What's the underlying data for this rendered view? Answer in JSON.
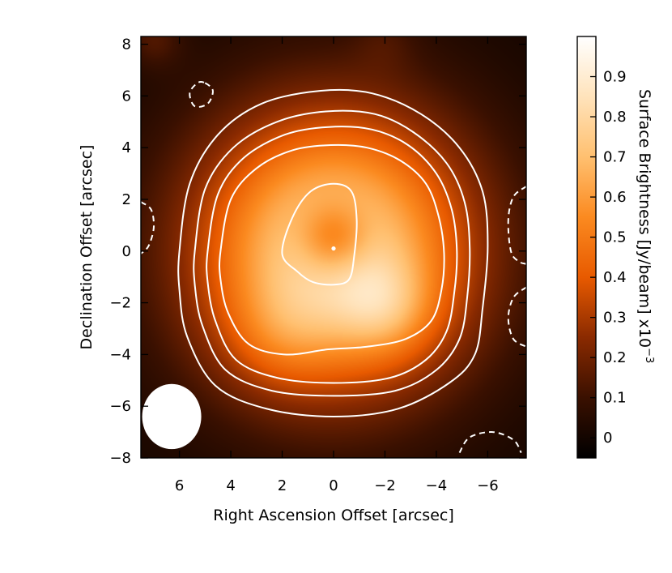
{
  "chart_data": {
    "type": "heatmap",
    "title": "",
    "xlabel": "Right Ascension Offset [arcsec]",
    "ylabel": "Declination Offset [arcsec]",
    "colorbar_label": "Surface Brightness [Jy/beam] x10",
    "colorbar_exponent": "−3",
    "xlim": [
      7.5,
      -7.5
    ],
    "ylim": [
      -8,
      8.3
    ],
    "x_ticks": [
      6,
      4,
      2,
      0,
      -2,
      -4,
      -6
    ],
    "x_tick_labels": [
      "6",
      "4",
      "2",
      "0",
      "−2",
      "−4",
      "−6"
    ],
    "y_ticks": [
      8,
      6,
      4,
      2,
      0,
      -2,
      -4,
      -6,
      -8
    ],
    "y_tick_labels": [
      "8",
      "6",
      "4",
      "2",
      "0",
      "−2",
      "−4",
      "−6",
      "−8"
    ],
    "colorbar_range": [
      -0.05,
      1.0
    ],
    "colorbar_ticks": [
      0,
      0.1,
      0.2,
      0.3,
      0.4,
      0.5,
      0.6,
      0.7,
      0.8,
      0.9
    ],
    "colorbar_tick_labels": [
      "0",
      "0.1",
      "0.2",
      "0.3",
      "0.4",
      "0.5",
      "0.6",
      "0.7",
      "0.8",
      "0.9"
    ],
    "colormap": [
      "#000000",
      "#3a1000",
      "#8a2a00",
      "#e85a00",
      "#fb8a20",
      "#ffc070",
      "#ffe3bb",
      "#ffffff"
    ],
    "contours_solid": [
      [
        [
          6.0,
          0.0
        ],
        [
          5.6,
          2.6
        ],
        [
          4.5,
          4.5
        ],
        [
          2.8,
          5.7
        ],
        [
          0.5,
          6.2
        ],
        [
          -1.5,
          6.1
        ],
        [
          -3.4,
          5.3
        ],
        [
          -4.9,
          4.0
        ],
        [
          -5.8,
          2.3
        ],
        [
          -6.0,
          0.2
        ],
        [
          -5.8,
          -2.2
        ],
        [
          -5.5,
          -4.0
        ],
        [
          -4.5,
          -5.1
        ],
        [
          -2.5,
          -6.1
        ],
        [
          0.0,
          -6.4
        ],
        [
          2.6,
          -6.1
        ],
        [
          4.6,
          -5.2
        ],
        [
          5.7,
          -3.3
        ],
        [
          6.0,
          -1.5
        ]
      ],
      [
        [
          5.4,
          0.0
        ],
        [
          5.0,
          2.4
        ],
        [
          3.9,
          4.0
        ],
        [
          2.2,
          5.0
        ],
        [
          0.3,
          5.4
        ],
        [
          -1.6,
          5.3
        ],
        [
          -3.1,
          4.6
        ],
        [
          -4.4,
          3.4
        ],
        [
          -5.1,
          1.9
        ],
        [
          -5.3,
          0.1
        ],
        [
          -5.2,
          -1.8
        ],
        [
          -4.9,
          -3.4
        ],
        [
          -4.0,
          -4.6
        ],
        [
          -2.4,
          -5.4
        ],
        [
          0.0,
          -5.6
        ],
        [
          2.4,
          -5.4
        ],
        [
          4.2,
          -4.6
        ],
        [
          5.1,
          -2.9
        ],
        [
          5.4,
          -1.3
        ]
      ],
      [
        [
          4.9,
          0.0
        ],
        [
          4.5,
          2.2
        ],
        [
          3.5,
          3.6
        ],
        [
          1.9,
          4.5
        ],
        [
          0.2,
          4.8
        ],
        [
          -1.5,
          4.7
        ],
        [
          -2.9,
          4.1
        ],
        [
          -4.0,
          3.0
        ],
        [
          -4.6,
          1.6
        ],
        [
          -4.8,
          0.0
        ],
        [
          -4.7,
          -1.6
        ],
        [
          -4.4,
          -3.1
        ],
        [
          -3.6,
          -4.2
        ],
        [
          -2.2,
          -4.9
        ],
        [
          0.0,
          -5.1
        ],
        [
          2.2,
          -4.9
        ],
        [
          3.8,
          -4.2
        ],
        [
          4.6,
          -2.7
        ],
        [
          4.9,
          -1.2
        ]
      ],
      [
        [
          4.4,
          0.0
        ],
        [
          4.0,
          2.0
        ],
        [
          3.0,
          3.2
        ],
        [
          1.6,
          3.9
        ],
        [
          0.1,
          4.1
        ],
        [
          -1.3,
          4.0
        ],
        [
          -2.6,
          3.5
        ],
        [
          -3.6,
          2.6
        ],
        [
          -4.1,
          1.3
        ],
        [
          -4.3,
          -0.1
        ],
        [
          -4.2,
          -1.5
        ],
        [
          -3.8,
          -2.7
        ],
        [
          -2.8,
          -3.4
        ],
        [
          -1.3,
          -3.7
        ],
        [
          0.2,
          -3.8
        ],
        [
          1.9,
          -4.0
        ],
        [
          3.3,
          -3.6
        ],
        [
          4.1,
          -2.4
        ],
        [
          4.4,
          -1.1
        ]
      ],
      [
        [
          2.0,
          -0.1
        ],
        [
          1.6,
          1.3
        ],
        [
          0.9,
          2.3
        ],
        [
          0.0,
          2.6
        ],
        [
          -0.7,
          2.3
        ],
        [
          -0.9,
          1.2
        ],
        [
          -0.8,
          -0.2
        ],
        [
          -0.6,
          -1.1
        ],
        [
          0.0,
          -1.3
        ],
        [
          0.8,
          -1.2
        ],
        [
          1.4,
          -0.8
        ]
      ]
    ],
    "contours_dashed": [
      [
        [
          5.0,
          6.5
        ],
        [
          4.7,
          6.2
        ],
        [
          4.9,
          5.7
        ],
        [
          5.4,
          5.6
        ],
        [
          5.6,
          6.1
        ],
        [
          5.3,
          6.5
        ]
      ],
      [
        [
          7.5,
          1.9
        ],
        [
          7.1,
          1.6
        ],
        [
          7.0,
          0.9
        ],
        [
          7.2,
          0.2
        ],
        [
          7.5,
          -0.1
        ]
      ],
      [
        [
          -7.5,
          2.5
        ],
        [
          -7.0,
          2.1
        ],
        [
          -6.8,
          1.2
        ],
        [
          -6.9,
          0.0
        ],
        [
          -7.2,
          -0.4
        ],
        [
          -7.5,
          -0.5
        ]
      ],
      [
        [
          -7.5,
          -1.4
        ],
        [
          -7.0,
          -1.8
        ],
        [
          -6.8,
          -2.6
        ],
        [
          -7.0,
          -3.4
        ],
        [
          -7.5,
          -3.7
        ]
      ],
      [
        [
          -4.9,
          -7.8
        ],
        [
          -5.3,
          -7.2
        ],
        [
          -6.2,
          -7.0
        ],
        [
          -7.0,
          -7.3
        ],
        [
          -7.3,
          -7.8
        ]
      ]
    ],
    "peak_marker": [
      0.0,
      0.1
    ],
    "beam": {
      "center": [
        6.3,
        -6.4
      ],
      "major_arcsec": 2.3,
      "minor_arcsec": 2.4
    },
    "emission_components": [
      {
        "x": 0.0,
        "y": 0.0,
        "amplitude": 0.5,
        "sigma": 4.2
      },
      {
        "x": 0.0,
        "y": 0.0,
        "amplitude": 0.35,
        "sigma": 3.2
      },
      {
        "x": -2.0,
        "y": -2.2,
        "amplitude": 0.2,
        "sigma": 1.3
      },
      {
        "x": 2.0,
        "y": -3.2,
        "amplitude": 0.12,
        "sigma": 1.5
      },
      {
        "x": 0.0,
        "y": 0.5,
        "amplitude": -0.3,
        "sigma": 1.0
      },
      {
        "x": 7.0,
        "y": 8.2,
        "amplitude": 0.12,
        "sigma": 0.8
      },
      {
        "x": -2.0,
        "y": 8.2,
        "amplitude": 0.06,
        "sigma": 0.9
      }
    ]
  }
}
